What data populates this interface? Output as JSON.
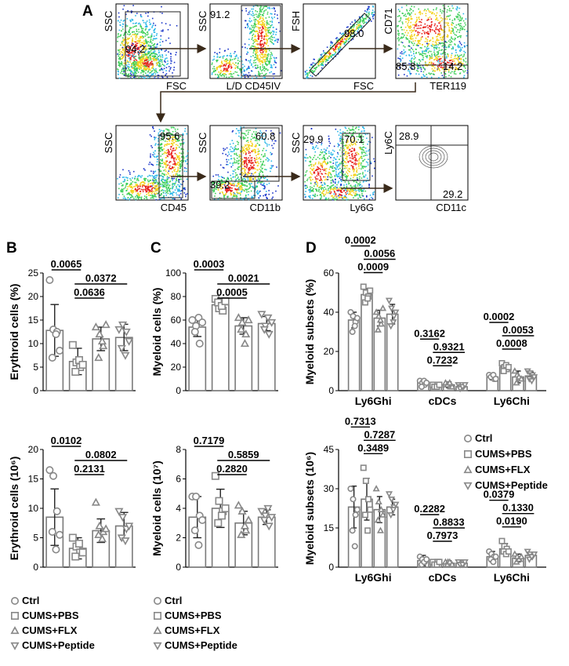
{
  "panels": {
    "A": "A",
    "B": "B",
    "C": "C",
    "D": "D"
  },
  "colors": {
    "bar_fill": "#ffffff",
    "bar_stroke": "#7a7a7a",
    "marker": "#888888",
    "axis": "#000000",
    "arrow": "#3a2a1a",
    "gate": "#222222"
  },
  "flow_plots": [
    {
      "y_label": "SSC",
      "x_label": "FSC",
      "gates": [
        "94.2"
      ]
    },
    {
      "y_label": "SSC",
      "x_label": "L/D CD45IV",
      "gates": [
        "91.2"
      ]
    },
    {
      "y_label": "FSH",
      "x_label": "FSC",
      "gates": [
        "98.0"
      ]
    },
    {
      "y_label": "CD71",
      "x_label": "TER119",
      "gates": [
        "85.8",
        "14.2"
      ]
    },
    {
      "y_label": "SSC",
      "x_label": "CD45",
      "gates": [
        "95.6"
      ]
    },
    {
      "y_label": "SSC",
      "x_label": "CD11b",
      "gates": [
        "60.8",
        "39.2"
      ]
    },
    {
      "y_label": "SSC",
      "x_label": "Ly6G",
      "gates": [
        "29.9",
        "70.1"
      ]
    },
    {
      "y_label": "Ly6C",
      "x_label": "CD11c",
      "gates": [
        "28.9",
        "29.2"
      ]
    }
  ],
  "legend": {
    "groups": [
      "Ctrl",
      "CUMS+PBS",
      "CUMS+FLX",
      "CUMS+Peptide"
    ],
    "symbols": [
      "circle",
      "square",
      "triangle-up",
      "triangle-down"
    ]
  },
  "chart_data": [
    {
      "id": "B-top",
      "type": "bar",
      "ylabel": "Erythroid cells (%)",
      "ylim": [
        0,
        25
      ],
      "yticks": [
        "0",
        "5",
        "10",
        "15",
        "20",
        "25"
      ],
      "categories": [
        "Ctrl",
        "CUMS+PBS",
        "CUMS+FLX",
        "CUMS+Peptide"
      ],
      "values": [
        12.8,
        6.2,
        11.0,
        11.3
      ],
      "errors": [
        5.5,
        2.8,
        2.5,
        2.8
      ],
      "points": [
        [
          23.5,
          13.0,
          12.5,
          7.0,
          12.0,
          8.5
        ],
        [
          9.7,
          6.0,
          5.0,
          4.0,
          6.5,
          5.5
        ],
        [
          13.5,
          12.0,
          9.5,
          7.0,
          10.5,
          14.0
        ],
        [
          13.0,
          14.0,
          12.5,
          9.0,
          7.5,
          10.5
        ]
      ],
      "comparisons": [
        {
          "label": "0.0065",
          "from": 0,
          "to": 1
        },
        {
          "label": "0.0372",
          "from": 1,
          "to": 3
        },
        {
          "label": "0.0636",
          "from": 1,
          "to": 2
        }
      ]
    },
    {
      "id": "B-bottom",
      "type": "bar",
      "ylabel": "Erythroid cells (10⁶)",
      "ylim": [
        0,
        20
      ],
      "yticks": [
        "0",
        "5",
        "10",
        "15",
        "20"
      ],
      "categories": [
        "Ctrl",
        "CUMS+PBS",
        "CUMS+FLX",
        "CUMS+Peptide"
      ],
      "values": [
        8.5,
        3.2,
        6.2,
        7.0
      ],
      "errors": [
        4.8,
        1.8,
        2.0,
        2.3
      ],
      "points": [
        [
          16.5,
          15.5,
          9.5,
          6.0,
          3.0,
          5.5
        ],
        [
          5.0,
          3.5,
          2.5,
          1.8,
          4.0,
          2.5
        ],
        [
          11.0,
          7.0,
          6.0,
          5.5,
          4.8,
          6.5
        ],
        [
          9.5,
          8.5,
          6.5,
          5.0,
          4.5,
          7.0
        ]
      ],
      "comparisons": [
        {
          "label": "0.0102",
          "from": 0,
          "to": 1
        },
        {
          "label": "0.0802",
          "from": 1,
          "to": 3
        },
        {
          "label": "0.2131",
          "from": 1,
          "to": 2
        }
      ]
    },
    {
      "id": "C-top",
      "type": "bar",
      "ylabel": "Myeloid cells (%)",
      "ylim": [
        0,
        100
      ],
      "yticks": [
        "0",
        "20",
        "40",
        "60",
        "80",
        "100"
      ],
      "categories": [
        "Ctrl",
        "CUMS+PBS",
        "CUMS+FLX",
        "CUMS+Peptide"
      ],
      "values": [
        54,
        73,
        55,
        57
      ],
      "errors": [
        8,
        5,
        7,
        6
      ],
      "points": [
        [
          60,
          55,
          40,
          50,
          62,
          58
        ],
        [
          78,
          70,
          68,
          75,
          72,
          76
        ],
        [
          62,
          58,
          48,
          52,
          40,
          60
        ],
        [
          65,
          55,
          48,
          52,
          62,
          58
        ]
      ],
      "comparisons": [
        {
          "label": "0.0003",
          "from": 0,
          "to": 1
        },
        {
          "label": "0.0021",
          "from": 1,
          "to": 3
        },
        {
          "label": "0.0005",
          "from": 1,
          "to": 2
        }
      ]
    },
    {
      "id": "C-bottom",
      "type": "bar",
      "ylabel": "Myeloid cells (10⁷)",
      "ylim": [
        0,
        8
      ],
      "yticks": [
        "0",
        "2",
        "4",
        "6",
        "8"
      ],
      "categories": [
        "Ctrl",
        "CUMS+PBS",
        "CUMS+FLX",
        "CUMS+Peptide"
      ],
      "values": [
        3.4,
        4.0,
        3.0,
        3.4
      ],
      "errors": [
        1.4,
        1.3,
        0.8,
        0.5
      ],
      "points": [
        [
          4.8,
          4.8,
          3.5,
          2.5,
          1.5,
          3.2
        ],
        [
          6.2,
          4.5,
          3.8,
          3.0,
          3.5,
          4.0
        ],
        [
          4.2,
          3.8,
          2.5,
          2.2,
          2.8,
          3.2
        ],
        [
          3.8,
          3.5,
          2.8,
          3.2,
          4.0,
          3.4
        ]
      ],
      "comparisons": [
        {
          "label": "0.7179",
          "from": 0,
          "to": 1
        },
        {
          "label": "0.5859",
          "from": 1,
          "to": 3
        },
        {
          "label": "0.2820",
          "from": 1,
          "to": 2
        }
      ]
    },
    {
      "id": "D-top",
      "type": "bar",
      "ylabel": "Myeloid subsets (%)",
      "ylim": [
        0,
        60
      ],
      "yticks": [
        "0",
        "20",
        "40",
        "60"
      ],
      "categories": [
        "Ly6Ghi",
        "cDCs",
        "Ly6Chi"
      ],
      "series": [
        {
          "name": "Ctrl",
          "values": [
            36,
            4,
            7
          ],
          "errors": [
            4,
            1.5,
            1.5
          ],
          "points": [
            [
              40,
              38,
              35,
              30,
              33,
              37
            ],
            [
              5,
              4,
              3,
              2,
              5,
              4
            ],
            [
              8,
              7,
              6,
              7,
              8,
              6
            ]
          ]
        },
        {
          "name": "CUMS+PBS",
          "values": [
            49,
            2.5,
            12
          ],
          "errors": [
            3,
            1,
            2
          ],
          "points": [
            [
              53,
              50,
              48,
              45,
              47,
              51
            ],
            [
              3,
              2,
              3,
              2,
              2,
              3
            ],
            [
              14,
              12,
              11,
              10,
              13,
              12
            ]
          ]
        },
        {
          "name": "CUMS+FLX",
          "values": [
            37,
            3,
            7
          ],
          "errors": [
            4,
            1.5,
            3
          ],
          "points": [
            [
              40,
              38,
              34,
              31,
              36,
              42
            ],
            [
              4,
              3,
              2,
              3,
              4,
              2
            ],
            [
              10,
              8,
              6,
              4,
              7,
              6
            ]
          ]
        },
        {
          "name": "CUMS+Peptide",
          "values": [
            39,
            2,
            7.5
          ],
          "errors": [
            5,
            1,
            2
          ],
          "points": [
            [
              46,
              42,
              38,
              33,
              35,
              40
            ],
            [
              3,
              2,
              2,
              1,
              2,
              3
            ],
            [
              10,
              9,
              8,
              6,
              5,
              7
            ]
          ]
        }
      ],
      "comparisons": [
        {
          "label": "0.0002",
          "category": 0,
          "from": 0,
          "to": 1
        },
        {
          "label": "0.0056",
          "category": 0,
          "from": 1,
          "to": 3
        },
        {
          "label": "0.0009",
          "category": 0,
          "from": 1,
          "to": 2
        },
        {
          "label": "0.3162",
          "category": 1,
          "from": 0,
          "to": 1
        },
        {
          "label": "0.9321",
          "category": 1,
          "from": 1,
          "to": 3
        },
        {
          "label": "0.7232",
          "category": 1,
          "from": 1,
          "to": 2
        },
        {
          "label": "0.0002",
          "category": 2,
          "from": 0,
          "to": 1
        },
        {
          "label": "0.0053",
          "category": 2,
          "from": 1,
          "to": 3
        },
        {
          "label": "0.0008",
          "category": 2,
          "from": 1,
          "to": 2
        }
      ]
    },
    {
      "id": "D-bottom",
      "type": "bar",
      "ylabel": "Myeloid subsets (10⁶)",
      "ylim": [
        0,
        45
      ],
      "yticks": [
        "0",
        "15",
        "30",
        "45"
      ],
      "categories": [
        "Ly6Ghi",
        "cDCs",
        "Ly6Chi"
      ],
      "series": [
        {
          "name": "Ctrl",
          "values": [
            23,
            2.5,
            4
          ],
          "errors": [
            8,
            2,
            2
          ],
          "points": [
            [
              30,
              26,
              20,
              14,
              8,
              22
            ],
            [
              4,
              3,
              2,
              1,
              2,
              3
            ],
            [
              6,
              5,
              4,
              3,
              2,
              4
            ]
          ]
        },
        {
          "name": "CUMS+PBS",
          "values": [
            26,
            1.5,
            7
          ],
          "errors": [
            8,
            1,
            2
          ],
          "points": [
            [
              38,
              33,
              26,
              20,
              14,
              22
            ],
            [
              2,
              1,
              2,
              1,
              1,
              2
            ],
            [
              10,
              8,
              7,
              6,
              5,
              6
            ]
          ]
        },
        {
          "name": "CUMS+FLX",
          "values": [
            22,
            1.5,
            3.5
          ],
          "errors": [
            5,
            1,
            1.5
          ],
          "points": [
            [
              30,
              25,
              22,
              18,
              14,
              20
            ],
            [
              2,
              2,
              1,
              1,
              2,
              1
            ],
            [
              5,
              4,
              3,
              2,
              3,
              4
            ]
          ]
        },
        {
          "name": "CUMS+Peptide",
          "values": [
            23,
            1.5,
            4.5
          ],
          "errors": [
            3,
            1,
            1
          ],
          "points": [
            [
              28,
              26,
              23,
              20,
              22,
              24
            ],
            [
              2,
              1,
              2,
              1,
              1,
              2
            ],
            [
              6,
              5,
              4,
              3,
              4,
              5
            ]
          ]
        }
      ],
      "comparisons": [
        {
          "label": "0.7313",
          "category": 0,
          "from": 0,
          "to": 1
        },
        {
          "label": "0.7287",
          "category": 0,
          "from": 1,
          "to": 3
        },
        {
          "label": "0.3489",
          "category": 0,
          "from": 1,
          "to": 2
        },
        {
          "label": "0.2282",
          "category": 1,
          "from": 0,
          "to": 1
        },
        {
          "label": "0.8833",
          "category": 1,
          "from": 1,
          "to": 3
        },
        {
          "label": "0.7973",
          "category": 1,
          "from": 1,
          "to": 2
        },
        {
          "label": "0.0379",
          "category": 2,
          "from": 0,
          "to": 1
        },
        {
          "label": "0.1330",
          "category": 2,
          "from": 1,
          "to": 3
        },
        {
          "label": "0.0190",
          "category": 2,
          "from": 1,
          "to": 2
        }
      ]
    }
  ]
}
